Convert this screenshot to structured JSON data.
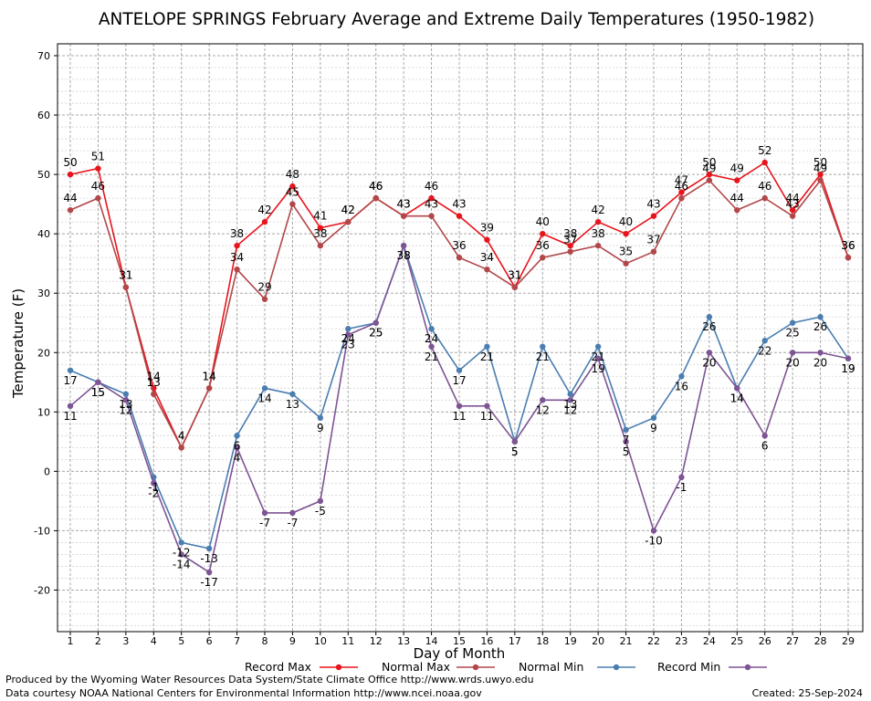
{
  "chart_data": {
    "type": "line",
    "title": "ANTELOPE SPRINGS February Average and Extreme Daily Temperatures (1950-1982)",
    "xlabel": "Day of Month",
    "ylabel": "Temperature (F)",
    "ylim": [
      -27,
      72
    ],
    "yticks": [
      -20,
      -10,
      0,
      10,
      20,
      30,
      40,
      50,
      60,
      70
    ],
    "x": [
      1,
      2,
      3,
      4,
      5,
      6,
      7,
      8,
      9,
      10,
      11,
      12,
      13,
      14,
      15,
      16,
      17,
      18,
      19,
      20,
      21,
      22,
      23,
      24,
      25,
      26,
      27,
      28,
      29
    ],
    "grid": true,
    "legend_position": "bottom",
    "series": [
      {
        "name": "Record Max",
        "color": "#e8141c",
        "values": [
          50,
          51,
          31,
          14,
          4,
          14,
          38,
          42,
          48,
          41,
          42,
          46,
          43,
          46,
          43,
          39,
          31,
          40,
          38,
          42,
          40,
          43,
          47,
          50,
          49,
          52,
          44,
          50,
          36
        ]
      },
      {
        "name": "Normal Max",
        "color": "#b2474a",
        "values": [
          44,
          46,
          31,
          13,
          4,
          14,
          34,
          29,
          45,
          38,
          42,
          46,
          43,
          43,
          36,
          34,
          31,
          36,
          37,
          38,
          35,
          37,
          46,
          49,
          44,
          46,
          43,
          49,
          36
        ]
      },
      {
        "name": "Normal Min",
        "color": "#4a7eb0",
        "values": [
          17,
          15,
          13,
          -1,
          -12,
          -13,
          6,
          14,
          13,
          9,
          24,
          25,
          38,
          24,
          17,
          21,
          5,
          21,
          13,
          21,
          7,
          9,
          16,
          26,
          14,
          22,
          25,
          26,
          19
        ]
      },
      {
        "name": "Record Min",
        "color": "#7d5494",
        "values": [
          11,
          15,
          12,
          -2,
          -14,
          -17,
          4,
          -7,
          -7,
          -5,
          23,
          25,
          38,
          21,
          11,
          11,
          5,
          12,
          12,
          19,
          5,
          -10,
          -1,
          20,
          14,
          6,
          20,
          20,
          19
        ]
      }
    ]
  },
  "footer": {
    "produced_by": "Produced by the Wyoming Water Resources Data System/State Climate Office http://www.wrds.uwyo.edu",
    "courtesy": "Data courtesy NOAA National Centers for Environmental Information http://www.ncei.noaa.gov",
    "created": "Created:  25-Sep-2024"
  }
}
